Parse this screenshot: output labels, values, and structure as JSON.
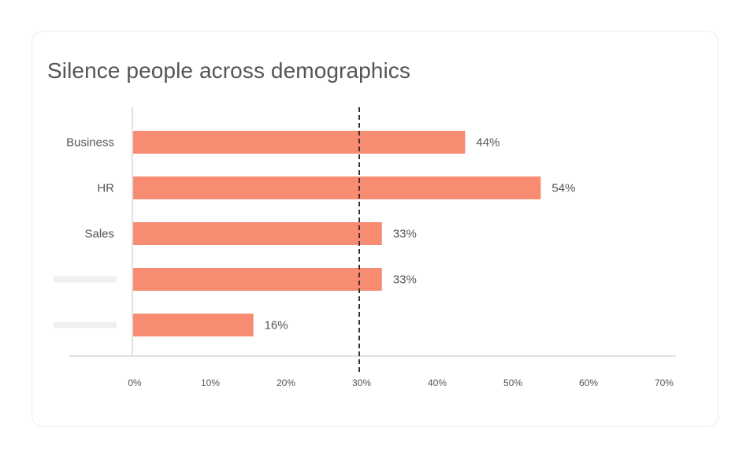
{
  "card": {
    "title": "Silence people across demographics"
  },
  "chart_data": {
    "type": "bar",
    "orientation": "horizontal",
    "title": "Silence people across demographics",
    "categories": [
      "Business",
      "HR",
      "Sales",
      "",
      ""
    ],
    "values": [
      44,
      54,
      33,
      33,
      16
    ],
    "value_labels": [
      "44%",
      "54%",
      "33%",
      "33%",
      "16%"
    ],
    "xlim": [
      0,
      70
    ],
    "xticks": [
      0,
      10,
      20,
      30,
      40,
      50,
      60,
      70
    ],
    "xtick_labels": [
      "0%",
      "10%",
      "20%",
      "30%",
      "40%",
      "50%",
      "60%",
      "70%"
    ],
    "reference_line": 30,
    "reference_line_style": "dashed",
    "grid": false,
    "colors": {
      "bar": "#f78c72",
      "reference_line": "#333333",
      "axis": "#e0e0e0",
      "placeholder": "#f0f0f0"
    }
  }
}
